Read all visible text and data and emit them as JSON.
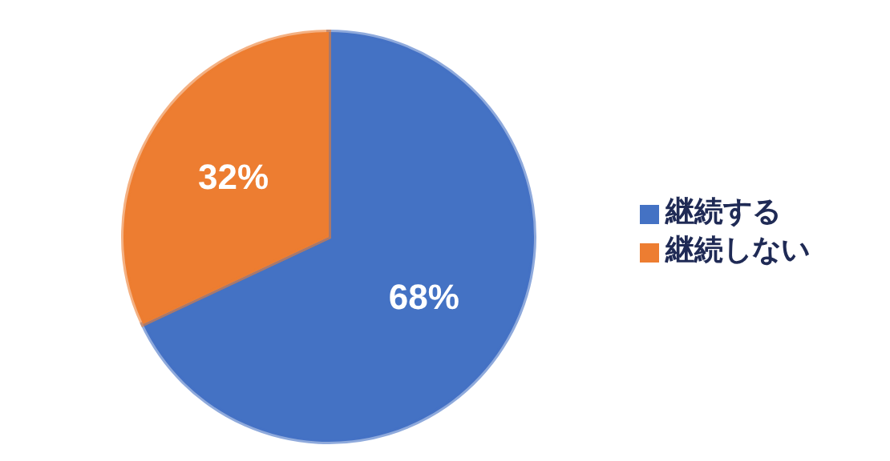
{
  "chart_data": {
    "type": "pie",
    "categories": [
      "継続する",
      "継続しない"
    ],
    "values": [
      68,
      32
    ],
    "colors": [
      "#4472c4",
      "#ed7d31"
    ],
    "value_labels": [
      "68%",
      "32%"
    ],
    "legend": "right"
  }
}
